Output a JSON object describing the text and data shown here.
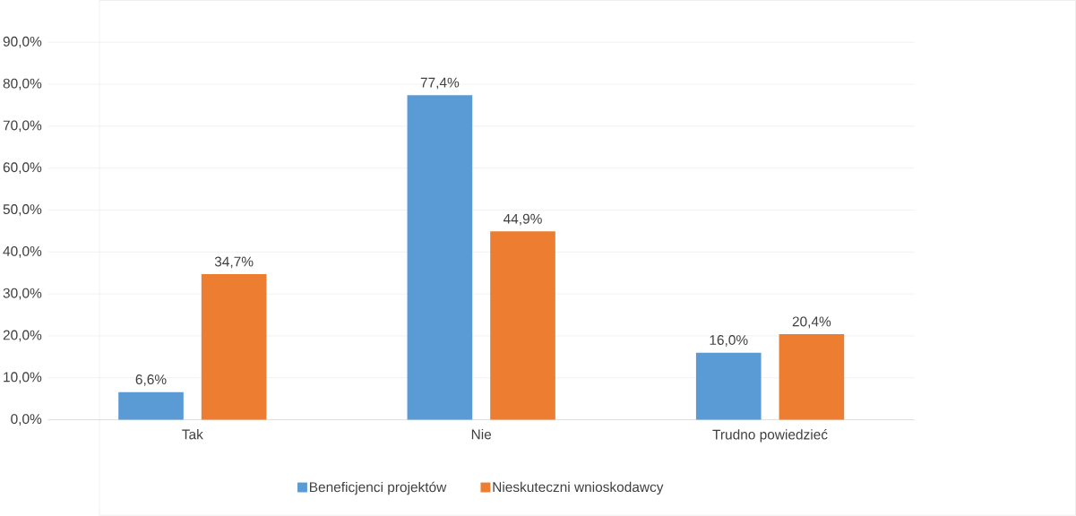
{
  "chart_data": {
    "type": "bar",
    "categories": [
      "Tak",
      "Nie",
      "Trudno powiedzieć"
    ],
    "series": [
      {
        "name": "Beneficjenci projektów",
        "color": "#5b9bd5",
        "values": [
          6.6,
          77.4,
          16.0
        ],
        "value_labels": [
          "6,6%",
          "77,4%",
          "16,0%"
        ]
      },
      {
        "name": "Nieskuteczni wnioskodawcy",
        "color": "#ed7d31",
        "values": [
          34.7,
          44.9,
          20.4
        ],
        "value_labels": [
          "34,7%",
          "44,9%",
          "20,4%"
        ]
      }
    ],
    "ylim": [
      0,
      90
    ],
    "yticks": [
      {
        "value": 0,
        "label": "0,0%"
      },
      {
        "value": 10,
        "label": "10,0%"
      },
      {
        "value": 20,
        "label": "20,0%"
      },
      {
        "value": 30,
        "label": "30,0%"
      },
      {
        "value": 40,
        "label": "40,0%"
      },
      {
        "value": 50,
        "label": "50,0%"
      },
      {
        "value": 60,
        "label": "60,0%"
      },
      {
        "value": 70,
        "label": "70,0%"
      },
      {
        "value": 80,
        "label": "80,0%"
      },
      {
        "value": 90,
        "label": "90,0%"
      }
    ],
    "grid": "y",
    "legend": "bottom"
  }
}
